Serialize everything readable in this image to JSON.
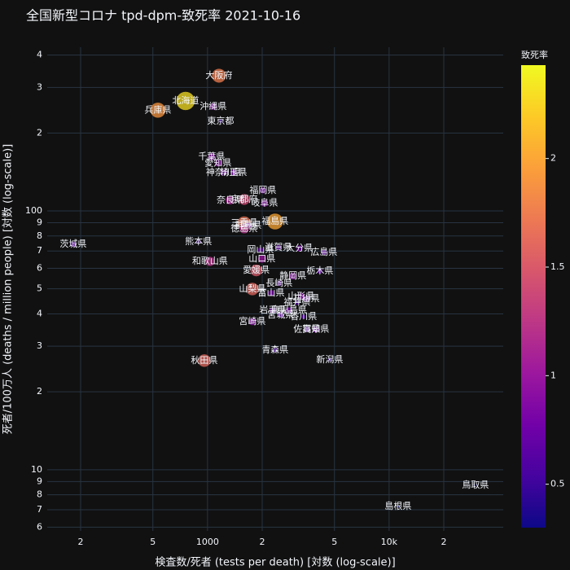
{
  "chart_data": {
    "type": "scatter",
    "title": "全国新型コロナ tpd-dpm-致死率 2021-10-16",
    "x_label": "検査数/死者 (tests per death) [対数 (log-scale)]",
    "y_label": "死者/100万人 (deaths / million people) [対数 (log-scale)]",
    "colorbar_title": "致死率",
    "labels": [
      "茨城県",
      "兵庫県",
      "北海道",
      "大阪府",
      "沖縄県",
      "東京都",
      "千葉県",
      "愛知県",
      "神奈川県",
      "埼玉県",
      "福岡県",
      "奈良県",
      "京都府",
      "岐阜県",
      "福島県",
      "三重県",
      "群馬県",
      "徳島県",
      "熊本県",
      "和歌山県",
      "岡山県",
      "滋賀県",
      "大分県",
      "広島県",
      "山口県",
      "愛媛県",
      "栃木県",
      "静岡県",
      "長崎県",
      "山梨県",
      "富山県",
      "山形県",
      "石川県",
      "福井県",
      "岩手県",
      "鹿児島県",
      "宮城県",
      "香川県",
      "宮崎県",
      "佐賀県",
      "高知県",
      "青森県",
      "秋田県",
      "新潟県",
      "鳥取県",
      "島根県"
    ],
    "x": [
      182,
      533,
      757,
      1156,
      1075,
      1180,
      1053,
      1144,
      1229,
      1392,
      2018,
      1330,
      1592,
      2060,
      2355,
      1592,
      1675,
      1592,
      892,
      1031,
      1957,
      2455,
      3210,
      4380,
      1995,
      1855,
      4160,
      2955,
      2480,
      1765,
      2240,
      3280,
      3500,
      3115,
      2285,
      2810,
      2530,
      3380,
      1765,
      3525,
      3950,
      2355,
      960,
      4705,
      29870,
      11200
    ],
    "y": [
      74.3,
      245,
      266,
      333,
      253,
      222,
      162,
      153,
      140.6,
      140.6,
      120,
      110,
      110.7,
      107,
      91,
      89.7,
      87.8,
      85.3,
      76,
      63.8,
      70.6,
      72.2,
      71.6,
      69.1,
      65.2,
      58.9,
      58.5,
      56,
      52.5,
      49.9,
      48.1,
      46.8,
      45.8,
      44.2,
      41.3,
      41.3,
      39.6,
      39,
      37.3,
      34.8,
      34.8,
      29,
      26.4,
      26.6,
      8.71,
      7.2
    ],
    "rates": [
      0.7,
      1.9,
      2.3,
      1.75,
      0.9,
      0.5,
      0.9,
      0.9,
      0.8,
      0.8,
      0.8,
      1.1,
      1.4,
      0.9,
      2.0,
      1.7,
      0.8,
      1.2,
      0.6,
      1.2,
      0.7,
      0.7,
      0.8,
      0.7,
      1.0,
      1.5,
      0.7,
      0.9,
      0.7,
      1.6,
      0.8,
      0.9,
      0.8,
      0.6,
      0.8,
      0.8,
      0.7,
      0.6,
      0.9,
      0.7,
      0.8,
      0.6,
      1.6,
      0.5,
      0.3,
      0.3
    ],
    "log_x": true,
    "log_y": true,
    "grid": true,
    "xlim": [
      131,
      42500
    ],
    "xticks": [
      {
        "value": 200,
        "label": "2"
      },
      {
        "value": 500,
        "label": "5"
      },
      1000,
      {
        "value": 2000,
        "label": "2"
      },
      {
        "value": 5000,
        "label": "5"
      },
      {
        "value": 10000,
        "label": "10k"
      },
      {
        "value": 20000,
        "label": "2"
      }
    ],
    "ylim": [
      5.8,
      429
    ],
    "yticks": [
      6,
      7,
      8,
      9,
      10,
      {
        "value": 20,
        "label": "2"
      },
      {
        "value": 30,
        "label": "3"
      },
      {
        "value": 40,
        "label": "4"
      },
      {
        "value": 50,
        "label": "5"
      },
      {
        "value": 60,
        "label": "6"
      },
      {
        "value": 70,
        "label": "7"
      },
      {
        "value": 80,
        "label": "8"
      },
      {
        "value": 90,
        "label": "9"
      },
      100,
      {
        "value": 200,
        "label": "2"
      },
      {
        "value": 300,
        "label": "3"
      },
      {
        "value": 400,
        "label": "4"
      }
    ],
    "clim": [
      0.3,
      2.43
    ],
    "cticks": [
      0.5,
      1,
      1.5,
      2
    ],
    "colorscale": [
      "#0d0887",
      "#46039f",
      "#7201a8",
      "#9c179e",
      "#bd3786",
      "#d8576b",
      "#ed7953",
      "#fb9f3a",
      "#fdca26",
      "#f0f921"
    ]
  }
}
